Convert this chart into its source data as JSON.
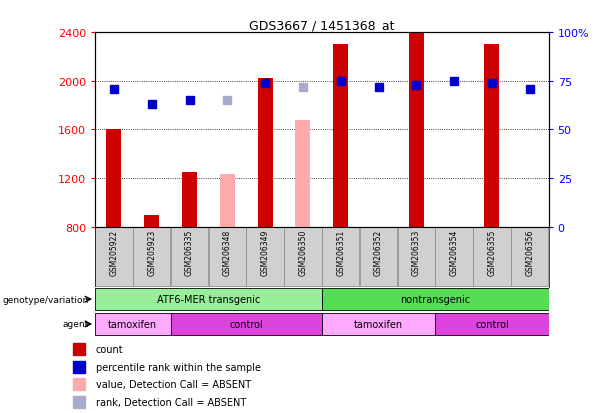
{
  "title": "GDS3667 / 1451368_at",
  "samples": [
    "GSM205922",
    "GSM205923",
    "GSM206335",
    "GSM206348",
    "GSM206349",
    "GSM206350",
    "GSM206351",
    "GSM206352",
    "GSM206353",
    "GSM206354",
    "GSM206355",
    "GSM206356"
  ],
  "count_values": [
    1600,
    900,
    1250,
    null,
    2020,
    null,
    2300,
    null,
    2390,
    null,
    2300,
    null
  ],
  "count_absent": [
    null,
    null,
    null,
    1230,
    null,
    1680,
    null,
    null,
    null,
    null,
    null,
    null
  ],
  "percentile_rank": [
    71,
    63,
    65,
    null,
    74,
    null,
    75,
    72,
    73,
    75,
    74,
    71
  ],
  "rank_absent": [
    null,
    null,
    null,
    65,
    null,
    72,
    null,
    null,
    null,
    null,
    null,
    null
  ],
  "ylim_left": [
    800,
    2400
  ],
  "ylim_right": [
    0,
    100
  ],
  "yticks_left": [
    800,
    1200,
    1600,
    2000,
    2400
  ],
  "yticks_right": [
    0,
    25,
    50,
    75,
    100
  ],
  "bar_color_present": "#cc0000",
  "bar_color_absent": "#ffaaaa",
  "dot_color_present": "#0000cc",
  "dot_color_absent": "#aaaacc",
  "background_plot": "#ffffff",
  "background_labels": "#c8c8c8",
  "genotype_groups": [
    {
      "label": "ATF6-MER transgenic",
      "start": 0,
      "end": 5,
      "color": "#99ee99"
    },
    {
      "label": "nontransgenic",
      "start": 6,
      "end": 11,
      "color": "#55dd55"
    }
  ],
  "agent_groups": [
    {
      "label": "tamoxifen",
      "start": 0,
      "end": 1,
      "color": "#ffaaff"
    },
    {
      "label": "control",
      "start": 2,
      "end": 5,
      "color": "#dd44dd"
    },
    {
      "label": "tamoxifen",
      "start": 6,
      "end": 8,
      "color": "#ffaaff"
    },
    {
      "label": "control",
      "start": 9,
      "end": 11,
      "color": "#dd44dd"
    }
  ],
  "legend_items": [
    {
      "label": "count",
      "color": "#cc0000"
    },
    {
      "label": "percentile rank within the sample",
      "color": "#0000cc"
    },
    {
      "label": "value, Detection Call = ABSENT",
      "color": "#ffaaaa"
    },
    {
      "label": "rank, Detection Call = ABSENT",
      "color": "#aaaacc"
    }
  ],
  "bar_width": 0.4,
  "dot_size": 6
}
